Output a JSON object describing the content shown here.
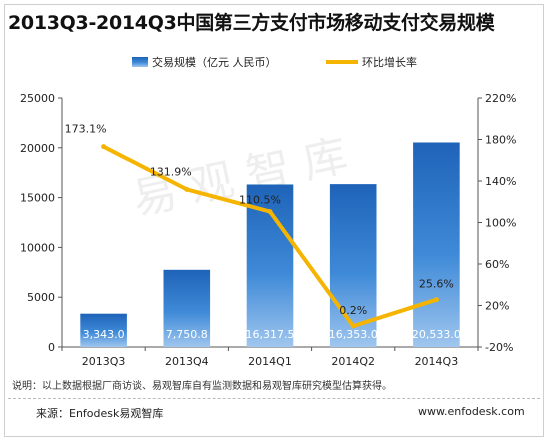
{
  "chart_data": {
    "type": "bar",
    "title": "2013Q3-2014Q3中国第三方支付市场移动支付交易规模",
    "categories": [
      "2013Q3",
      "2013Q4",
      "2014Q1",
      "2014Q2",
      "2014Q3"
    ],
    "series": [
      {
        "name": "交易规模（亿元 人民币）",
        "type": "bar",
        "axis": "left",
        "values": [
          3343.0,
          7750.8,
          16317.5,
          16353.0,
          20533.0
        ],
        "labels": [
          "3,343.0",
          "7,750.8",
          "16,317.5",
          "16,353.0",
          "20,533.0"
        ],
        "color": "#2a72c6"
      },
      {
        "name": "环比增长率",
        "type": "line",
        "axis": "right",
        "values": [
          173.1,
          131.9,
          110.5,
          0.2,
          25.6
        ],
        "labels": [
          "173.1%",
          "131.9%",
          "110.5%",
          "0.2%",
          "25.6%"
        ],
        "color": "#f5b400"
      }
    ],
    "y_left": {
      "min": 0,
      "max": 25000,
      "ticks": [
        0,
        5000,
        10000,
        15000,
        20000,
        25000
      ]
    },
    "y_right": {
      "min": -20,
      "max": 220,
      "ticks": [
        -20,
        20,
        60,
        100,
        140,
        180,
        220
      ],
      "tick_labels": [
        "-20%",
        "20%",
        "60%",
        "100%",
        "140%",
        "180%",
        "220%"
      ]
    },
    "legend_position": "top",
    "grid": false
  },
  "watermark": "易观智库",
  "note": "说明：以上数据根据厂商访谈、易观智库自有监测数据和易观智库研究模型估算获得。",
  "source": "来源：Enfodesk易观智库",
  "url": "www.enfodesk.com"
}
